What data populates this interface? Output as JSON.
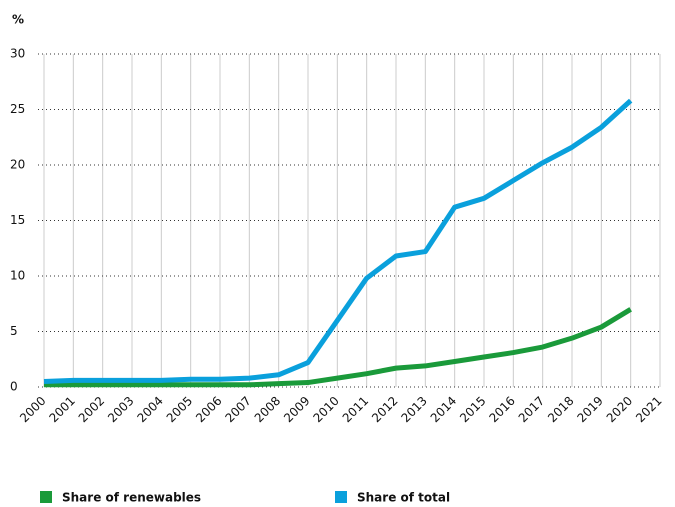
{
  "chart_data": {
    "type": "line",
    "y_label": "%",
    "x": [
      2000,
      2001,
      2002,
      2003,
      2004,
      2005,
      2006,
      2007,
      2008,
      2009,
      2010,
      2011,
      2012,
      2013,
      2014,
      2015,
      2016,
      2017,
      2018,
      2019,
      2020
    ],
    "series": [
      {
        "name": "Share of renewables",
        "color": "#1a9a3a",
        "values": [
          0.2,
          0.2,
          0.2,
          0.2,
          0.2,
          0.2,
          0.2,
          0.2,
          0.3,
          0.4,
          0.8,
          1.2,
          1.7,
          1.9,
          2.3,
          2.7,
          3.1,
          3.6,
          4.4,
          5.4,
          7.0
        ]
      },
      {
        "name": "Share of total",
        "color": "#0aa0dc",
        "values": [
          0.5,
          0.6,
          0.6,
          0.6,
          0.6,
          0.7,
          0.7,
          0.8,
          1.1,
          2.2,
          6.0,
          9.8,
          11.8,
          12.2,
          16.2,
          17.0,
          18.6,
          20.2,
          21.6,
          23.4,
          25.8
        ]
      }
    ],
    "xlim": [
      2000,
      2021
    ],
    "xticks": [
      2000,
      2001,
      2002,
      2003,
      2004,
      2005,
      2006,
      2007,
      2008,
      2009,
      2010,
      2011,
      2012,
      2013,
      2014,
      2015,
      2016,
      2017,
      2018,
      2019,
      2020,
      2021
    ],
    "ylim": [
      0,
      30
    ],
    "yticks": [
      0,
      5,
      10,
      15,
      20,
      25,
      30
    ],
    "grid": true
  }
}
